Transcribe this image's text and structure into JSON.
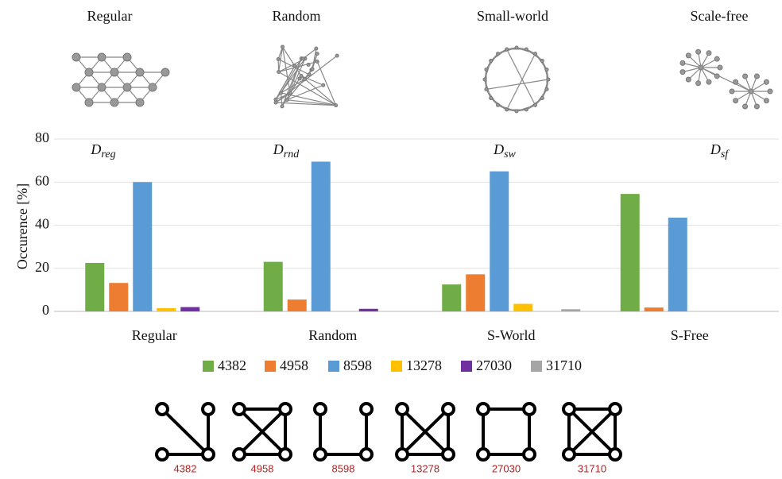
{
  "networks": [
    "Regular",
    "Random",
    "Small-world",
    "Scale-free"
  ],
  "chart_data": {
    "type": "bar",
    "categories": [
      "Regular",
      "Random",
      "S-World",
      "S-Free"
    ],
    "series": [
      {
        "name": "4382",
        "color": "#70ad47",
        "values": [
          22.5,
          23,
          12.5,
          54.5
        ]
      },
      {
        "name": "4958",
        "color": "#ed7d31",
        "values": [
          13.2,
          5.5,
          17.2,
          1.8
        ]
      },
      {
        "name": "8598",
        "color": "#5b9bd5",
        "values": [
          60,
          69.5,
          65,
          43.5
        ]
      },
      {
        "name": "13278",
        "color": "#ffc000",
        "values": [
          1.5,
          0,
          3.5,
          0
        ]
      },
      {
        "name": "27030",
        "color": "#7030a0",
        "values": [
          2,
          1.2,
          0,
          0
        ]
      },
      {
        "name": "31710",
        "color": "#a5a5a5",
        "values": [
          0,
          0,
          1,
          0
        ]
      }
    ],
    "ylabel": "Occurence [%]",
    "ylim": [
      0,
      80
    ],
    "yticks": [
      0,
      20,
      40,
      60,
      80
    ],
    "grid": true,
    "annotations": [
      {
        "main": "D",
        "sub": "reg"
      },
      {
        "main": "D",
        "sub": "rnd"
      },
      {
        "main": "D",
        "sub": "sw"
      },
      {
        "main": "D",
        "sub": "sf"
      }
    ],
    "legend": "bottom"
  },
  "motifs": [
    "4382",
    "4958",
    "8598",
    "13278",
    "27030",
    "31710"
  ]
}
